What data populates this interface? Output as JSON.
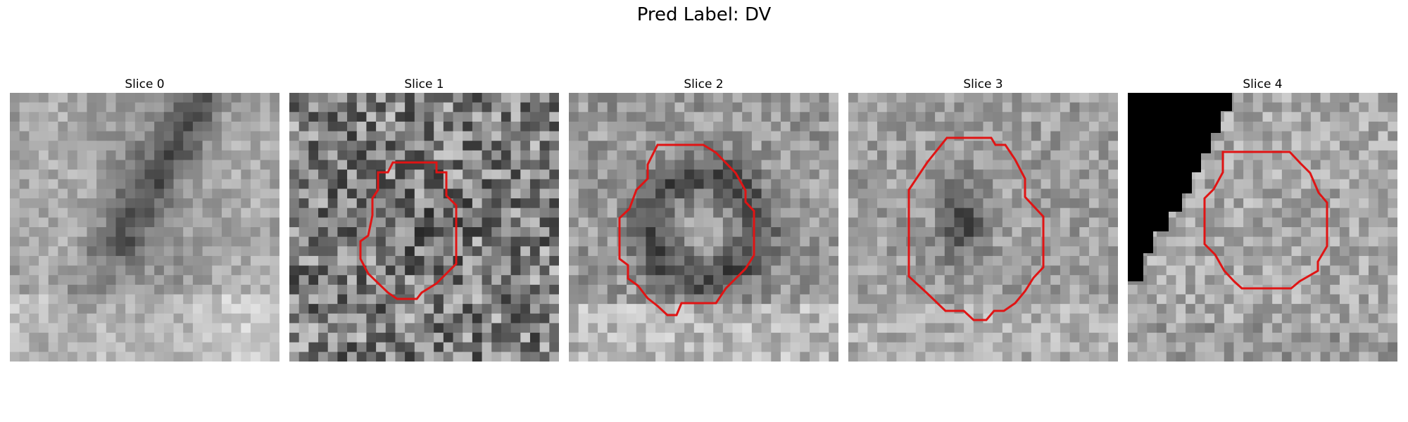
{
  "figure": {
    "suptitle": "Pred Label: DV"
  },
  "colors": {
    "contour": "#e01414",
    "mask": "#000000"
  },
  "panels": [
    {
      "title": "Slice 0",
      "has_contour": false,
      "texture": "smooth-dark-diagonal",
      "seed": 11
    },
    {
      "title": "Slice 1",
      "has_contour": true,
      "texture": "noisy",
      "seed": 23
    },
    {
      "title": "Slice 2",
      "has_contour": true,
      "texture": "ring",
      "seed": 37
    },
    {
      "title": "Slice 3",
      "has_contour": true,
      "texture": "dark-blob",
      "seed": 51
    },
    {
      "title": "Slice 4",
      "has_contour": true,
      "texture": "bright-with-mask",
      "seed": 67
    }
  ]
}
